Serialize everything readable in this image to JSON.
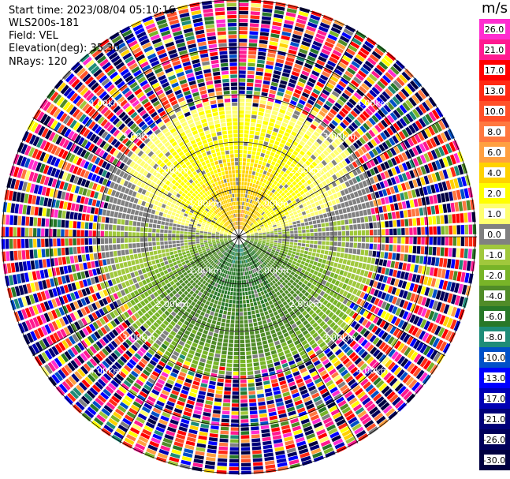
{
  "header": {
    "start_time": "Start time: 2023/08/04 05:10:16",
    "instrument": "WLS200s-181",
    "field": "Field: VEL",
    "elevation": "Elevation(deg): 35.30",
    "nrays": "NRays: 120"
  },
  "colorbar": {
    "unit": "m/s",
    "labels": [
      "26.0",
      "21.0",
      "17.0",
      "13.0",
      "10.0",
      "8.0",
      "6.0",
      "4.0",
      "2.0",
      "1.0",
      "0.0",
      "-1.0",
      "-2.0",
      "-4.0",
      "-6.0",
      "-8.0",
      "-10.0",
      "-13.0",
      "-17.0",
      "-21.0",
      "-26.0",
      "-30.0"
    ],
    "colors": [
      "#ff2dd0",
      "#ff1a90",
      "#ff0000",
      "#ff2a14",
      "#ff5028",
      "#ff7840",
      "#ffa040",
      "#ffd200",
      "#ffff00",
      "#ffff70",
      "#808080",
      "#a0c83c",
      "#78b428",
      "#508c28",
      "#287828",
      "#1e8c78",
      "#0050c8",
      "#0000ff",
      "#0000b4",
      "#000078",
      "#00005a",
      "#000040"
    ]
  },
  "chart_data": {
    "type": "heatmap",
    "projection": "polar-ppi",
    "field": "VEL",
    "nrays": 120,
    "elevation_deg": 35.3,
    "range_ring_labels": [
      "1.00km",
      "2.00km",
      "3.00km",
      "4.00km"
    ],
    "value_range": [
      -30.0,
      26.0
    ],
    "pattern": "positive velocities (yellow/orange) north of radar, negative (green/teal) south, noisy random colors beyond ~2.5 km"
  }
}
